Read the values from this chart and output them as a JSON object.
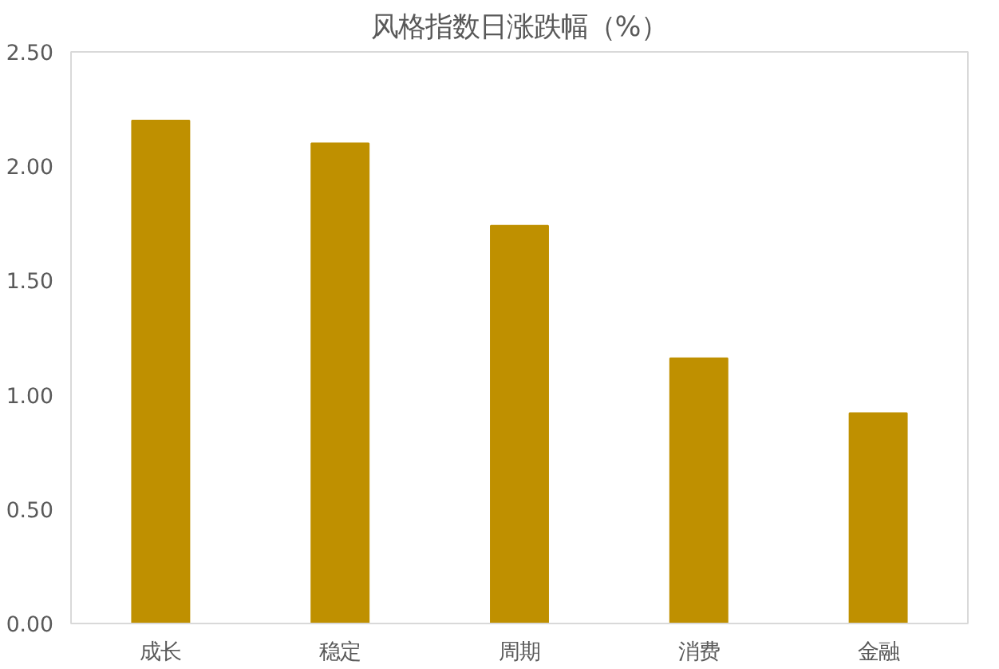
{
  "chart_data": {
    "type": "bar",
    "title": "风格指数日涨跌幅（%）",
    "categories": [
      "成长",
      "稳定",
      "周期",
      "消费",
      "金融"
    ],
    "values": [
      2.2,
      2.1,
      1.74,
      1.16,
      0.92
    ],
    "color": "#bf9000",
    "ylim": [
      0,
      2.5
    ],
    "yticks": [
      {
        "value": 0,
        "label": "0.00"
      },
      {
        "value": 0.5,
        "label": "0.50"
      },
      {
        "value": 1,
        "label": "1.00"
      },
      {
        "value": 1.5,
        "label": "1.50"
      },
      {
        "value": 2,
        "label": "2.00"
      },
      {
        "value": 2.5,
        "label": "2.50"
      }
    ],
    "grid": false
  }
}
